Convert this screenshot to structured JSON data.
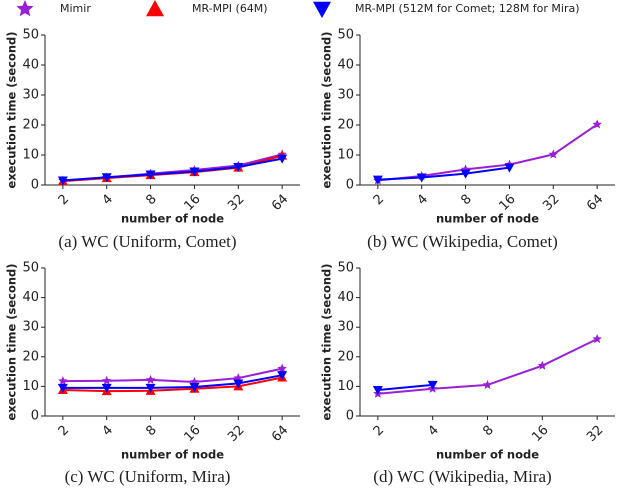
{
  "chart_data": [
    {
      "type": "line",
      "title": "(a) WC (Uniform, Comet)",
      "x_label": "number of node",
      "y_label": "execution time (second)",
      "categories": [
        "2",
        "4",
        "8",
        "16",
        "32",
        "64"
      ],
      "ylim": [
        0,
        50
      ],
      "yticks": [
        0,
        10,
        20,
        30,
        40,
        50
      ],
      "series": [
        {
          "name": "Mimir",
          "color": "#9b1fd6",
          "marker": "star",
          "values": [
            1.5,
            2.5,
            3.8,
            5.0,
            6.5,
            10.2
          ]
        },
        {
          "name": "MR-MPI (64M)",
          "color": "#ff0000",
          "marker": "triangle-up",
          "values": [
            1.3,
            2.3,
            3.3,
            4.3,
            5.8,
            9.8
          ]
        },
        {
          "name": "MR-MPI (512M for Comet; 128M for Mira)",
          "color": "#0000ff",
          "marker": "triangle-down",
          "values": [
            1.5,
            2.6,
            3.5,
            4.5,
            6.0,
            8.8
          ]
        }
      ]
    },
    {
      "type": "line",
      "title": "(b) WC (Wikipedia, Comet)",
      "x_label": "number of node",
      "y_label": "execution time (second)",
      "categories": [
        "2",
        "4",
        "8",
        "16",
        "32",
        "64"
      ],
      "ylim": [
        0,
        50
      ],
      "yticks": [
        0,
        10,
        20,
        30,
        40,
        50
      ],
      "series": [
        {
          "name": "Mimir",
          "color": "#9b1fd6",
          "marker": "star",
          "values": [
            1.5,
            3.0,
            5.2,
            6.8,
            10.2,
            20.2
          ]
        },
        {
          "name": "MR-MPI (512M for Comet; 128M for Mira)",
          "color": "#0000ff",
          "marker": "triangle-down",
          "values": [
            1.8,
            2.5,
            3.8,
            5.8,
            null,
            null
          ]
        }
      ]
    },
    {
      "type": "line",
      "title": "(c) WC (Uniform, Mira)",
      "x_label": "number of node",
      "y_label": "execution time (second)",
      "categories": [
        "2",
        "4",
        "8",
        "16",
        "32",
        "64"
      ],
      "ylim": [
        0,
        50
      ],
      "yticks": [
        0,
        10,
        20,
        30,
        40,
        50
      ],
      "series": [
        {
          "name": "Mimir",
          "color": "#9b1fd6",
          "marker": "star",
          "values": [
            11.8,
            11.9,
            12.2,
            11.5,
            12.8,
            16.0
          ]
        },
        {
          "name": "MR-MPI (64M)",
          "color": "#ff0000",
          "marker": "triangle-up",
          "values": [
            8.8,
            8.4,
            8.5,
            9.2,
            10.0,
            13.0
          ]
        },
        {
          "name": "MR-MPI (512M for Comet; 128M for Mira)",
          "color": "#0000ff",
          "marker": "triangle-down",
          "values": [
            9.5,
            9.5,
            9.5,
            9.8,
            11.0,
            13.8
          ]
        }
      ]
    },
    {
      "type": "line",
      "title": "(d) WC (Wikipedia, Mira)",
      "x_label": "number of node",
      "y_label": "execution time (second)",
      "categories": [
        "2",
        "4",
        "8",
        "16",
        "32"
      ],
      "ylim": [
        0,
        50
      ],
      "yticks": [
        0,
        10,
        20,
        30,
        40,
        50
      ],
      "series": [
        {
          "name": "Mimir",
          "color": "#9b1fd6",
          "marker": "star",
          "values": [
            7.5,
            9.2,
            10.5,
            17.0,
            26.0
          ]
        },
        {
          "name": "MR-MPI (512M for Comet; 128M for Mira)",
          "color": "#0000ff",
          "marker": "triangle-down",
          "values": [
            8.8,
            10.5,
            null,
            null,
            null
          ]
        }
      ]
    }
  ]
}
